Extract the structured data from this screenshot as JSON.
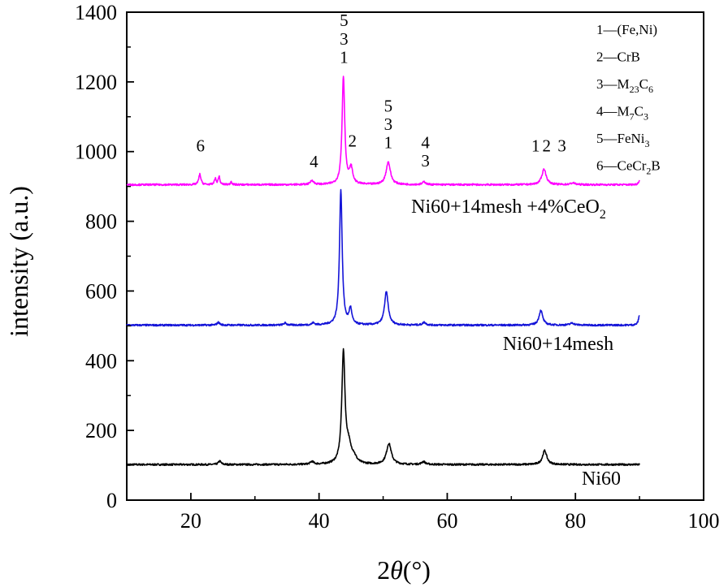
{
  "chart_data": {
    "type": "line",
    "xlabel": "2θ(°)",
    "ylabel": "intensity (a.u.)",
    "xlim": [
      10,
      100
    ],
    "ylim": [
      0,
      1400
    ],
    "xticks": [
      "20",
      "40",
      "60",
      "80",
      "100"
    ],
    "yticks": [
      "0",
      "200",
      "400",
      "600",
      "800",
      "1000",
      "1200",
      "1400"
    ],
    "x_range": [
      10,
      90
    ],
    "series": [
      {
        "name": "Ni60",
        "color": "#000000",
        "baseline": 102,
        "noise": 2.5,
        "peaks": [
          {
            "x": 24.5,
            "h": 10,
            "w": 0.25
          },
          {
            "x": 38.9,
            "h": 8,
            "w": 0.3
          },
          {
            "x": 43.8,
            "h": 318,
            "w": 0.3
          },
          {
            "x": 44.6,
            "h": 45,
            "w": 0.45
          },
          {
            "x": 45.4,
            "h": 18,
            "w": 0.5
          },
          {
            "x": 50.9,
            "h": 60,
            "w": 0.45
          },
          {
            "x": 56.3,
            "h": 8,
            "w": 0.35
          },
          {
            "x": 75.2,
            "h": 40,
            "w": 0.4
          }
        ]
      },
      {
        "name": "Ni60+14mesh",
        "color": "#1414d8",
        "baseline": 502,
        "noise": 2.5,
        "peaks": [
          {
            "x": 24.3,
            "h": 8,
            "w": 0.25
          },
          {
            "x": 34.7,
            "h": 6,
            "w": 0.25
          },
          {
            "x": 39.1,
            "h": 6,
            "w": 0.25
          },
          {
            "x": 43.4,
            "h": 388,
            "w": 0.25
          },
          {
            "x": 44.9,
            "h": 45,
            "w": 0.25
          },
          {
            "x": 50.5,
            "h": 95,
            "w": 0.35
          },
          {
            "x": 56.4,
            "h": 8,
            "w": 0.3
          },
          {
            "x": 74.6,
            "h": 42,
            "w": 0.35
          },
          {
            "x": 79.5,
            "h": 6,
            "w": 0.4
          },
          {
            "x": 90,
            "h": 28,
            "w": 0.2
          }
        ]
      },
      {
        "name": "Ni60+14mesh +4%CeO2",
        "color": "#ff00ff",
        "baseline": 905,
        "noise": 2.5,
        "peaks": [
          {
            "x": 21.4,
            "h": 30,
            "w": 0.2
          },
          {
            "x": 23.8,
            "h": 18,
            "w": 0.15
          },
          {
            "x": 24.4,
            "h": 24,
            "w": 0.15
          },
          {
            "x": 26.3,
            "h": 10,
            "w": 0.12
          },
          {
            "x": 38.9,
            "h": 12,
            "w": 0.3
          },
          {
            "x": 43.8,
            "h": 310,
            "w": 0.25
          },
          {
            "x": 45.0,
            "h": 45,
            "w": 0.3
          },
          {
            "x": 50.8,
            "h": 65,
            "w": 0.4
          },
          {
            "x": 56.4,
            "h": 8,
            "w": 0.3
          },
          {
            "x": 75.1,
            "h": 45,
            "w": 0.4
          },
          {
            "x": 79.6,
            "h": 5,
            "w": 0.4
          },
          {
            "x": 90,
            "h": 12,
            "w": 0.2
          }
        ]
      }
    ],
    "peak_labels": [
      {
        "text": "6",
        "x": 21.5,
        "y": 1000
      },
      {
        "text": "4",
        "x": 39.2,
        "y": 955
      },
      {
        "text": "5",
        "x": 43.9,
        "y": 1360
      },
      {
        "text": "3",
        "x": 43.9,
        "y": 1307
      },
      {
        "text": "1",
        "x": 43.9,
        "y": 1254
      },
      {
        "text": "2",
        "x": 45.2,
        "y": 1015
      },
      {
        "text": "5",
        "x": 50.8,
        "y": 1115
      },
      {
        "text": "3",
        "x": 50.8,
        "y": 1062
      },
      {
        "text": "1",
        "x": 50.8,
        "y": 1010
      },
      {
        "text": "4",
        "x": 56.6,
        "y": 1010
      },
      {
        "text": "3",
        "x": 56.6,
        "y": 957
      },
      {
        "text": "1",
        "x": 73.8,
        "y": 1000
      },
      {
        "text": "2",
        "x": 75.5,
        "y": 1000
      },
      {
        "text": "3",
        "x": 77.9,
        "y": 1000
      }
    ],
    "legend": [
      {
        "num": "1",
        "base": "(Fe,Ni)",
        "sub": "",
        "base2": "",
        "sub2": ""
      },
      {
        "num": "2",
        "base": "CrB",
        "sub": "",
        "base2": "",
        "sub2": ""
      },
      {
        "num": "3",
        "base": "M",
        "sub": "23",
        "base2": "C",
        "sub2": "6"
      },
      {
        "num": "4",
        "base": "M",
        "sub": "7",
        "base2": "C",
        "sub2": "3"
      },
      {
        "num": "5",
        "base": "FeNi",
        "sub": "3",
        "base2": "",
        "sub2": ""
      },
      {
        "num": "6",
        "base": "CeCr",
        "sub": "2",
        "base2": "B",
        "sub2": ""
      }
    ],
    "grid": false,
    "legend_position": "top-right"
  }
}
